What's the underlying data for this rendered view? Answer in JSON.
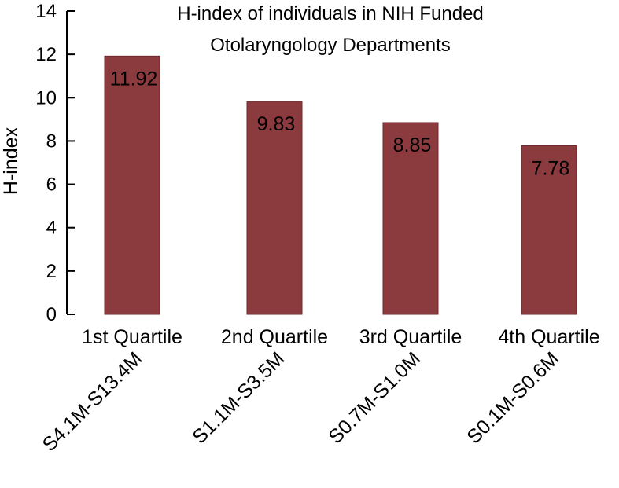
{
  "chart_data": {
    "type": "bar",
    "title": [
      "H-index of individuals in NIH Funded",
      "Otolaryngology Departments"
    ],
    "ylabel": "H-index",
    "xlabel": "",
    "categories": [
      "1st Quartile",
      "2nd Quartile",
      "3rd Quartile",
      "4th Quartile"
    ],
    "subcategories": [
      "S4.1M-S13.4M",
      "S1.1M-S3.5M",
      "S0.7M-S1.0M",
      "S0.1M-S0.6M"
    ],
    "values": [
      11.92,
      9.83,
      8.85,
      7.78
    ],
    "data_labels": [
      "11.92",
      "9.83",
      "8.85",
      "7.78"
    ],
    "ylim": [
      0,
      14
    ],
    "yticks": [
      0,
      2,
      4,
      6,
      8,
      10,
      12,
      14
    ],
    "grid": false,
    "bar_color": "#8b3a3e"
  }
}
